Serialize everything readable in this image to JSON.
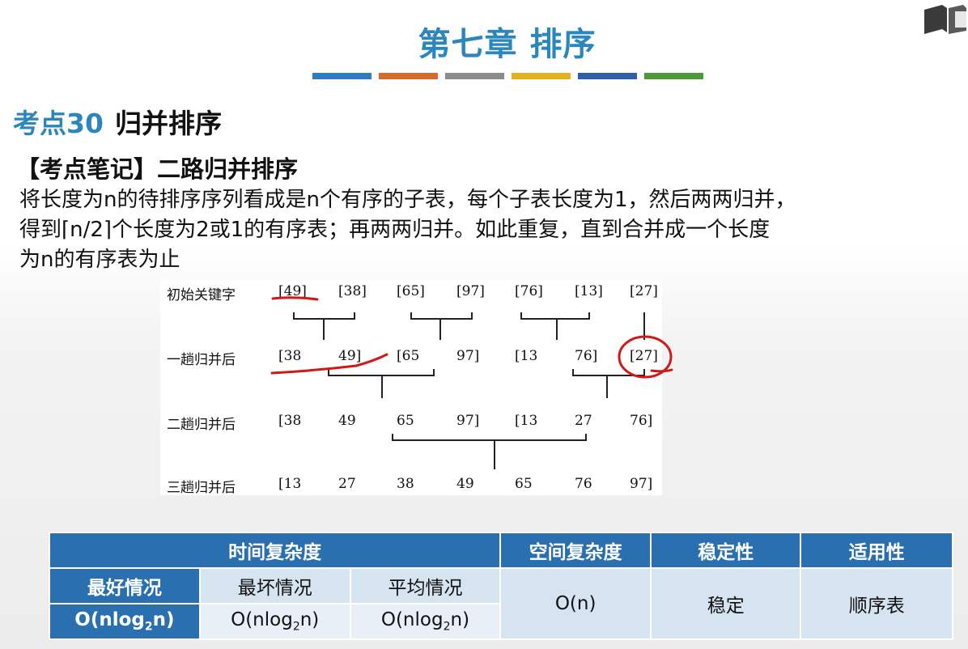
{
  "header": {
    "chapter_title": "第七章 排序",
    "color_bars": [
      "#2e7bbf",
      "#d46a2b",
      "#8c8c8c",
      "#e2b21f",
      "#2f5fa6",
      "#4a9a3a"
    ]
  },
  "section": {
    "number": "考点30",
    "name": "归并排序"
  },
  "note": {
    "heading": "【考点笔记】二路归并排序",
    "lines": [
      "将长度为n的待排序序列看成是n个有序的子表，每个子表长度为1，然后两两归并，",
      "得到⌈n/2⌉个长度为2或1的有序表；再两两归并。如此重复，直到合并成一个长度",
      "为n的有序表为止"
    ]
  },
  "diagram": {
    "rows": [
      {
        "label": "初始关键字",
        "cells": [
          "[49]",
          "[38]",
          "[65]",
          "[97]",
          "[76]",
          "[13]",
          "[27]"
        ]
      },
      {
        "label": "一趟归并后",
        "cells": [
          "[38",
          "49]",
          "[65",
          "97]",
          "[13",
          "76]",
          "[27]"
        ]
      },
      {
        "label": "二趟归并后",
        "cells": [
          "[38",
          "49",
          "65",
          "97]",
          "[13",
          "27",
          "76]"
        ]
      },
      {
        "label": "三趟归并后",
        "cells": [
          "[13",
          "27",
          "38",
          "49",
          "65",
          "76",
          "97]"
        ]
      }
    ]
  },
  "annotation_color": "#d01818",
  "table": {
    "headers": {
      "time": "时间复杂度",
      "space": "空间复杂度",
      "stability": "稳定性",
      "applicability": "适用性"
    },
    "cases": {
      "best": "最好情况",
      "worst": "最坏情况",
      "average": "平均情况"
    },
    "values": {
      "best": {
        "prefix": "O(nlog",
        "sub": "2",
        "suffix": "n)"
      },
      "worst": {
        "prefix": "O(nlog",
        "sub": "2",
        "suffix": "n)"
      },
      "average": {
        "prefix": "O(nlog",
        "sub": "2",
        "suffix": "n)"
      },
      "space": "O(n)",
      "stability": "稳定",
      "applicability": "顺序表"
    }
  }
}
